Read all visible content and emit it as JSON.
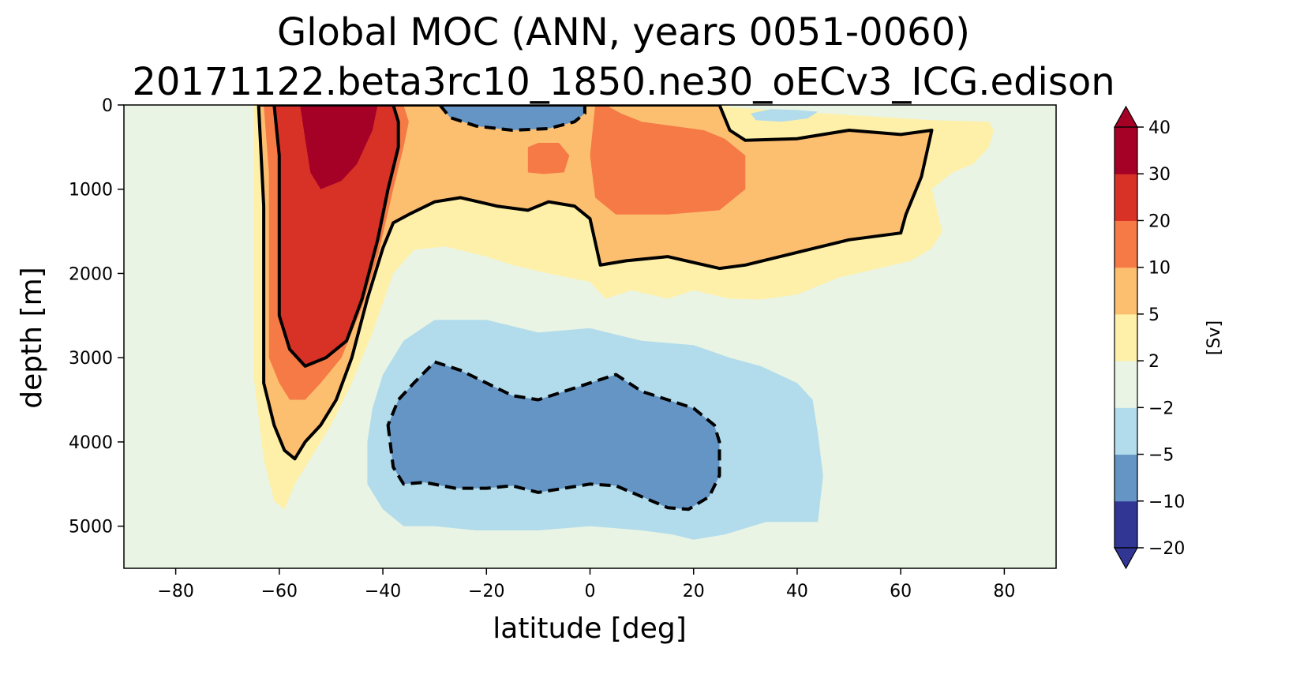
{
  "chart_data": {
    "type": "contour",
    "title": "Global MOC (ANN, years 0051-0060)",
    "subtitle": "20171122.beta3rc10_1850.ne30_oECv3_ICG.edison",
    "xlabel": "latitude [deg]",
    "ylabel": "depth [m]",
    "xlim": [
      -90,
      90
    ],
    "ylim": [
      5500,
      0
    ],
    "x_ticks": [
      -80,
      -60,
      -40,
      -20,
      0,
      20,
      40,
      60,
      80
    ],
    "x_tick_labels": [
      "−80",
      "−60",
      "−40",
      "−20",
      "0",
      "20",
      "40",
      "60",
      "80"
    ],
    "y_ticks": [
      0,
      1000,
      2000,
      3000,
      4000,
      5000
    ],
    "y_tick_labels": [
      "0",
      "1000",
      "2000",
      "3000",
      "4000",
      "5000"
    ],
    "colorbar": {
      "label": "[Sv]",
      "levels": [
        -20,
        -10,
        -5,
        -2,
        2,
        5,
        10,
        20,
        30,
        40
      ],
      "level_labels": [
        "−20",
        "−10",
        "−5",
        "−2",
        "2",
        "5",
        "10",
        "20",
        "30",
        "40"
      ],
      "colors": [
        "#313695",
        "#6495c4",
        "#b2dceb",
        "#e9f4e4",
        "#fef0a8",
        "#fcbf70",
        "#f57a46",
        "#d83227",
        "#a50026"
      ],
      "extend_low_color": "#313695",
      "extend_high_color": "#a50026"
    },
    "background_color": "#e9f4e4",
    "contour_line_levels": [
      -5,
      5,
      20
    ],
    "regions": [
      {
        "value_range": [
          2,
          5
        ],
        "points": [
          [
            -65,
            0
          ],
          [
            -65,
            3200
          ],
          [
            -63,
            4200
          ],
          [
            -61,
            4700
          ],
          [
            -59,
            4800
          ],
          [
            -57,
            4500
          ],
          [
            -54,
            4200
          ],
          [
            -50,
            3800
          ],
          [
            -46,
            3300
          ],
          [
            -42,
            2700
          ],
          [
            -38,
            2000
          ],
          [
            -34,
            1720
          ],
          [
            -28,
            1680
          ],
          [
            -20,
            1800
          ],
          [
            -15,
            1900
          ],
          [
            -8,
            2000
          ],
          [
            0,
            2100
          ],
          [
            3,
            2300
          ],
          [
            8,
            2200
          ],
          [
            15,
            2300
          ],
          [
            20,
            2200
          ],
          [
            27,
            2300
          ],
          [
            33,
            2310
          ],
          [
            40,
            2250
          ],
          [
            48,
            2050
          ],
          [
            55,
            1950
          ],
          [
            62,
            1850
          ],
          [
            66,
            1700
          ],
          [
            68,
            1500
          ],
          [
            66,
            1000
          ],
          [
            70,
            800
          ],
          [
            74,
            700
          ],
          [
            77,
            500
          ],
          [
            78,
            300
          ],
          [
            77,
            200
          ],
          [
            66,
            180
          ],
          [
            50,
            120
          ],
          [
            35,
            60
          ],
          [
            28,
            30
          ],
          [
            24,
            0
          ]
        ]
      },
      {
        "value_range": [
          5,
          10
        ],
        "points": [
          [
            -64,
            0
          ],
          [
            -63,
            1200
          ],
          [
            -63,
            3300
          ],
          [
            -61,
            3800
          ],
          [
            -59,
            4100
          ],
          [
            -57,
            4200
          ],
          [
            -55,
            4000
          ],
          [
            -52,
            3800
          ],
          [
            -49,
            3500
          ],
          [
            -46,
            3000
          ],
          [
            -43,
            2300
          ],
          [
            -40,
            1700
          ],
          [
            -38,
            1400
          ],
          [
            -35,
            1300
          ],
          [
            -30,
            1150
          ],
          [
            -25,
            1100
          ],
          [
            -18,
            1200
          ],
          [
            -12,
            1250
          ],
          [
            -8,
            1150
          ],
          [
            -3,
            1200
          ],
          [
            0,
            1350
          ],
          [
            2,
            1900
          ],
          [
            7,
            1850
          ],
          [
            15,
            1800
          ],
          [
            25,
            1940
          ],
          [
            30,
            1900
          ],
          [
            40,
            1750
          ],
          [
            50,
            1600
          ],
          [
            60,
            1520
          ],
          [
            61,
            1300
          ],
          [
            64,
            850
          ],
          [
            66,
            300
          ],
          [
            60,
            350
          ],
          [
            50,
            300
          ],
          [
            40,
            400
          ],
          [
            30,
            420
          ],
          [
            27,
            300
          ],
          [
            25,
            0
          ]
        ]
      },
      {
        "value_range": [
          10,
          20
        ],
        "points": [
          [
            -63,
            0
          ],
          [
            -62,
            800
          ],
          [
            -62,
            3000
          ],
          [
            -60,
            3300
          ],
          [
            -58,
            3500
          ],
          [
            -55,
            3500
          ],
          [
            -52,
            3300
          ],
          [
            -48,
            3000
          ],
          [
            -44,
            2400
          ],
          [
            -41,
            1800
          ],
          [
            -38,
            1000
          ],
          [
            -36,
            500
          ],
          [
            -35,
            200
          ],
          [
            -36,
            0
          ]
        ]
      },
      {
        "value_range": [
          10,
          20
        ],
        "points": [
          [
            1,
            0
          ],
          [
            0,
            600
          ],
          [
            1,
            1100
          ],
          [
            5,
            1300
          ],
          [
            15,
            1300
          ],
          [
            25,
            1250
          ],
          [
            30,
            1000
          ],
          [
            30,
            600
          ],
          [
            26,
            400
          ],
          [
            22,
            300
          ],
          [
            10,
            200
          ],
          [
            6,
            100
          ],
          [
            3,
            0
          ]
        ]
      },
      {
        "value_range": [
          10,
          20
        ],
        "points": [
          [
            -12,
            500
          ],
          [
            -12,
            800
          ],
          [
            -9,
            820
          ],
          [
            -5,
            800
          ],
          [
            -4,
            600
          ],
          [
            -6,
            450
          ],
          [
            -10,
            450
          ]
        ]
      },
      {
        "value_range": [
          20,
          30
        ],
        "points": [
          [
            -61,
            0
          ],
          [
            -60,
            600
          ],
          [
            -60,
            2500
          ],
          [
            -58,
            2900
          ],
          [
            -55,
            3100
          ],
          [
            -51,
            3000
          ],
          [
            -47,
            2800
          ],
          [
            -44,
            2300
          ],
          [
            -41,
            1600
          ],
          [
            -39,
            1000
          ],
          [
            -37,
            500
          ],
          [
            -37,
            200
          ],
          [
            -38,
            0
          ]
        ]
      },
      {
        "value_range": [
          30,
          40
        ],
        "points": [
          [
            -56,
            0
          ],
          [
            -55,
            400
          ],
          [
            -54,
            800
          ],
          [
            -52,
            1000
          ],
          [
            -48,
            900
          ],
          [
            -45,
            700
          ],
          [
            -42,
            300
          ],
          [
            -41,
            0
          ]
        ]
      },
      {
        "value_range": [
          -5,
          -2
        ],
        "points": [
          [
            -43,
            4000
          ],
          [
            -43,
            4500
          ],
          [
            -40,
            4800
          ],
          [
            -36,
            5000
          ],
          [
            -30,
            5000
          ],
          [
            -22,
            5050
          ],
          [
            -10,
            5050
          ],
          [
            0,
            5000
          ],
          [
            10,
            5050
          ],
          [
            16,
            5100
          ],
          [
            20,
            5160
          ],
          [
            26,
            5100
          ],
          [
            34,
            4950
          ],
          [
            44,
            4950
          ],
          [
            45,
            4400
          ],
          [
            44,
            3900
          ],
          [
            43,
            3500
          ],
          [
            40,
            3300
          ],
          [
            33,
            3100
          ],
          [
            27,
            3000
          ],
          [
            20,
            2850
          ],
          [
            10,
            2800
          ],
          [
            0,
            2650
          ],
          [
            -10,
            2700
          ],
          [
            -20,
            2550
          ],
          [
            -30,
            2550
          ],
          [
            -36,
            2800
          ],
          [
            -40,
            3200
          ],
          [
            -42,
            3600
          ]
        ]
      },
      {
        "value_range": [
          -5,
          -2
        ],
        "points": [
          [
            31,
            100
          ],
          [
            32,
            180
          ],
          [
            37,
            200
          ],
          [
            42,
            160
          ],
          [
            44,
            80
          ],
          [
            40,
            60
          ],
          [
            35,
            50
          ]
        ]
      },
      {
        "value_range": [
          -10,
          -5
        ],
        "points": [
          [
            -39,
            3800
          ],
          [
            -38,
            4300
          ],
          [
            -36,
            4500
          ],
          [
            -32,
            4480
          ],
          [
            -26,
            4550
          ],
          [
            -20,
            4550
          ],
          [
            -15,
            4520
          ],
          [
            -10,
            4600
          ],
          [
            -5,
            4550
          ],
          [
            0,
            4500
          ],
          [
            5,
            4520
          ],
          [
            10,
            4650
          ],
          [
            15,
            4780
          ],
          [
            19,
            4800
          ],
          [
            23,
            4650
          ],
          [
            25,
            4400
          ],
          [
            25,
            4000
          ],
          [
            24,
            3800
          ],
          [
            20,
            3600
          ],
          [
            15,
            3500
          ],
          [
            10,
            3400
          ],
          [
            5,
            3200
          ],
          [
            0,
            3300
          ],
          [
            -5,
            3400
          ],
          [
            -10,
            3500
          ],
          [
            -15,
            3450
          ],
          [
            -20,
            3300
          ],
          [
            -25,
            3150
          ],
          [
            -30,
            3050
          ],
          [
            -34,
            3300
          ],
          [
            -37,
            3500
          ]
        ]
      },
      {
        "value_range": [
          -20,
          -10
        ],
        "points": [
          [
            -27,
            0
          ],
          [
            -25,
            100
          ],
          [
            -20,
            200
          ],
          [
            -15,
            240
          ],
          [
            -10,
            220
          ],
          [
            -5,
            160
          ],
          [
            -2,
            80
          ],
          [
            -1,
            0
          ]
        ]
      },
      {
        "value_range": [
          -10,
          -5
        ],
        "points": [
          [
            -29,
            0
          ],
          [
            -27,
            150
          ],
          [
            -22,
            250
          ],
          [
            -15,
            300
          ],
          [
            -8,
            280
          ],
          [
            -3,
            200
          ],
          [
            -1,
            100
          ],
          [
            -1,
            0
          ]
        ]
      }
    ]
  }
}
